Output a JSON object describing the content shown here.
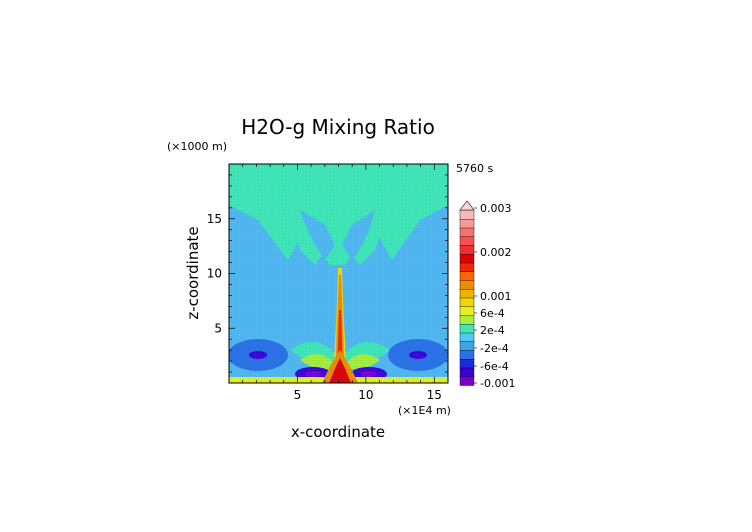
{
  "chart_data": {
    "type": "heatmap",
    "title": "H2O-g Mixing Ratio",
    "time_label": "5760 s",
    "xlabel": "x-coordinate",
    "ylabel": "z-coordinate",
    "x_unit": "(×1E4 m)",
    "y_unit": "(×1000 m)",
    "xlim": [
      0,
      16
    ],
    "ylim": [
      0,
      20
    ],
    "x_ticks": [
      "5",
      "10",
      "15"
    ],
    "y_ticks": [
      "5",
      "10",
      "15"
    ],
    "colorbar": {
      "labels": [
        "0.003",
        "0.002",
        "0.001",
        "6e-4",
        "2e-4",
        "-2e-4",
        "-6e-4",
        "-0.001"
      ],
      "colors": [
        "#7a00c8",
        "#3c00d6",
        "#1e28dc",
        "#2a70e6",
        "#3ea4ea",
        "#52c8f4",
        "#40e8b4",
        "#a8f038",
        "#e6f020",
        "#f0d800",
        "#f0b400",
        "#f08c00",
        "#ff6400",
        "#f02800",
        "#e00000",
        "#f03030",
        "#f85050",
        "#f87070",
        "#f89898",
        "#f8b8b8"
      ]
    }
  }
}
